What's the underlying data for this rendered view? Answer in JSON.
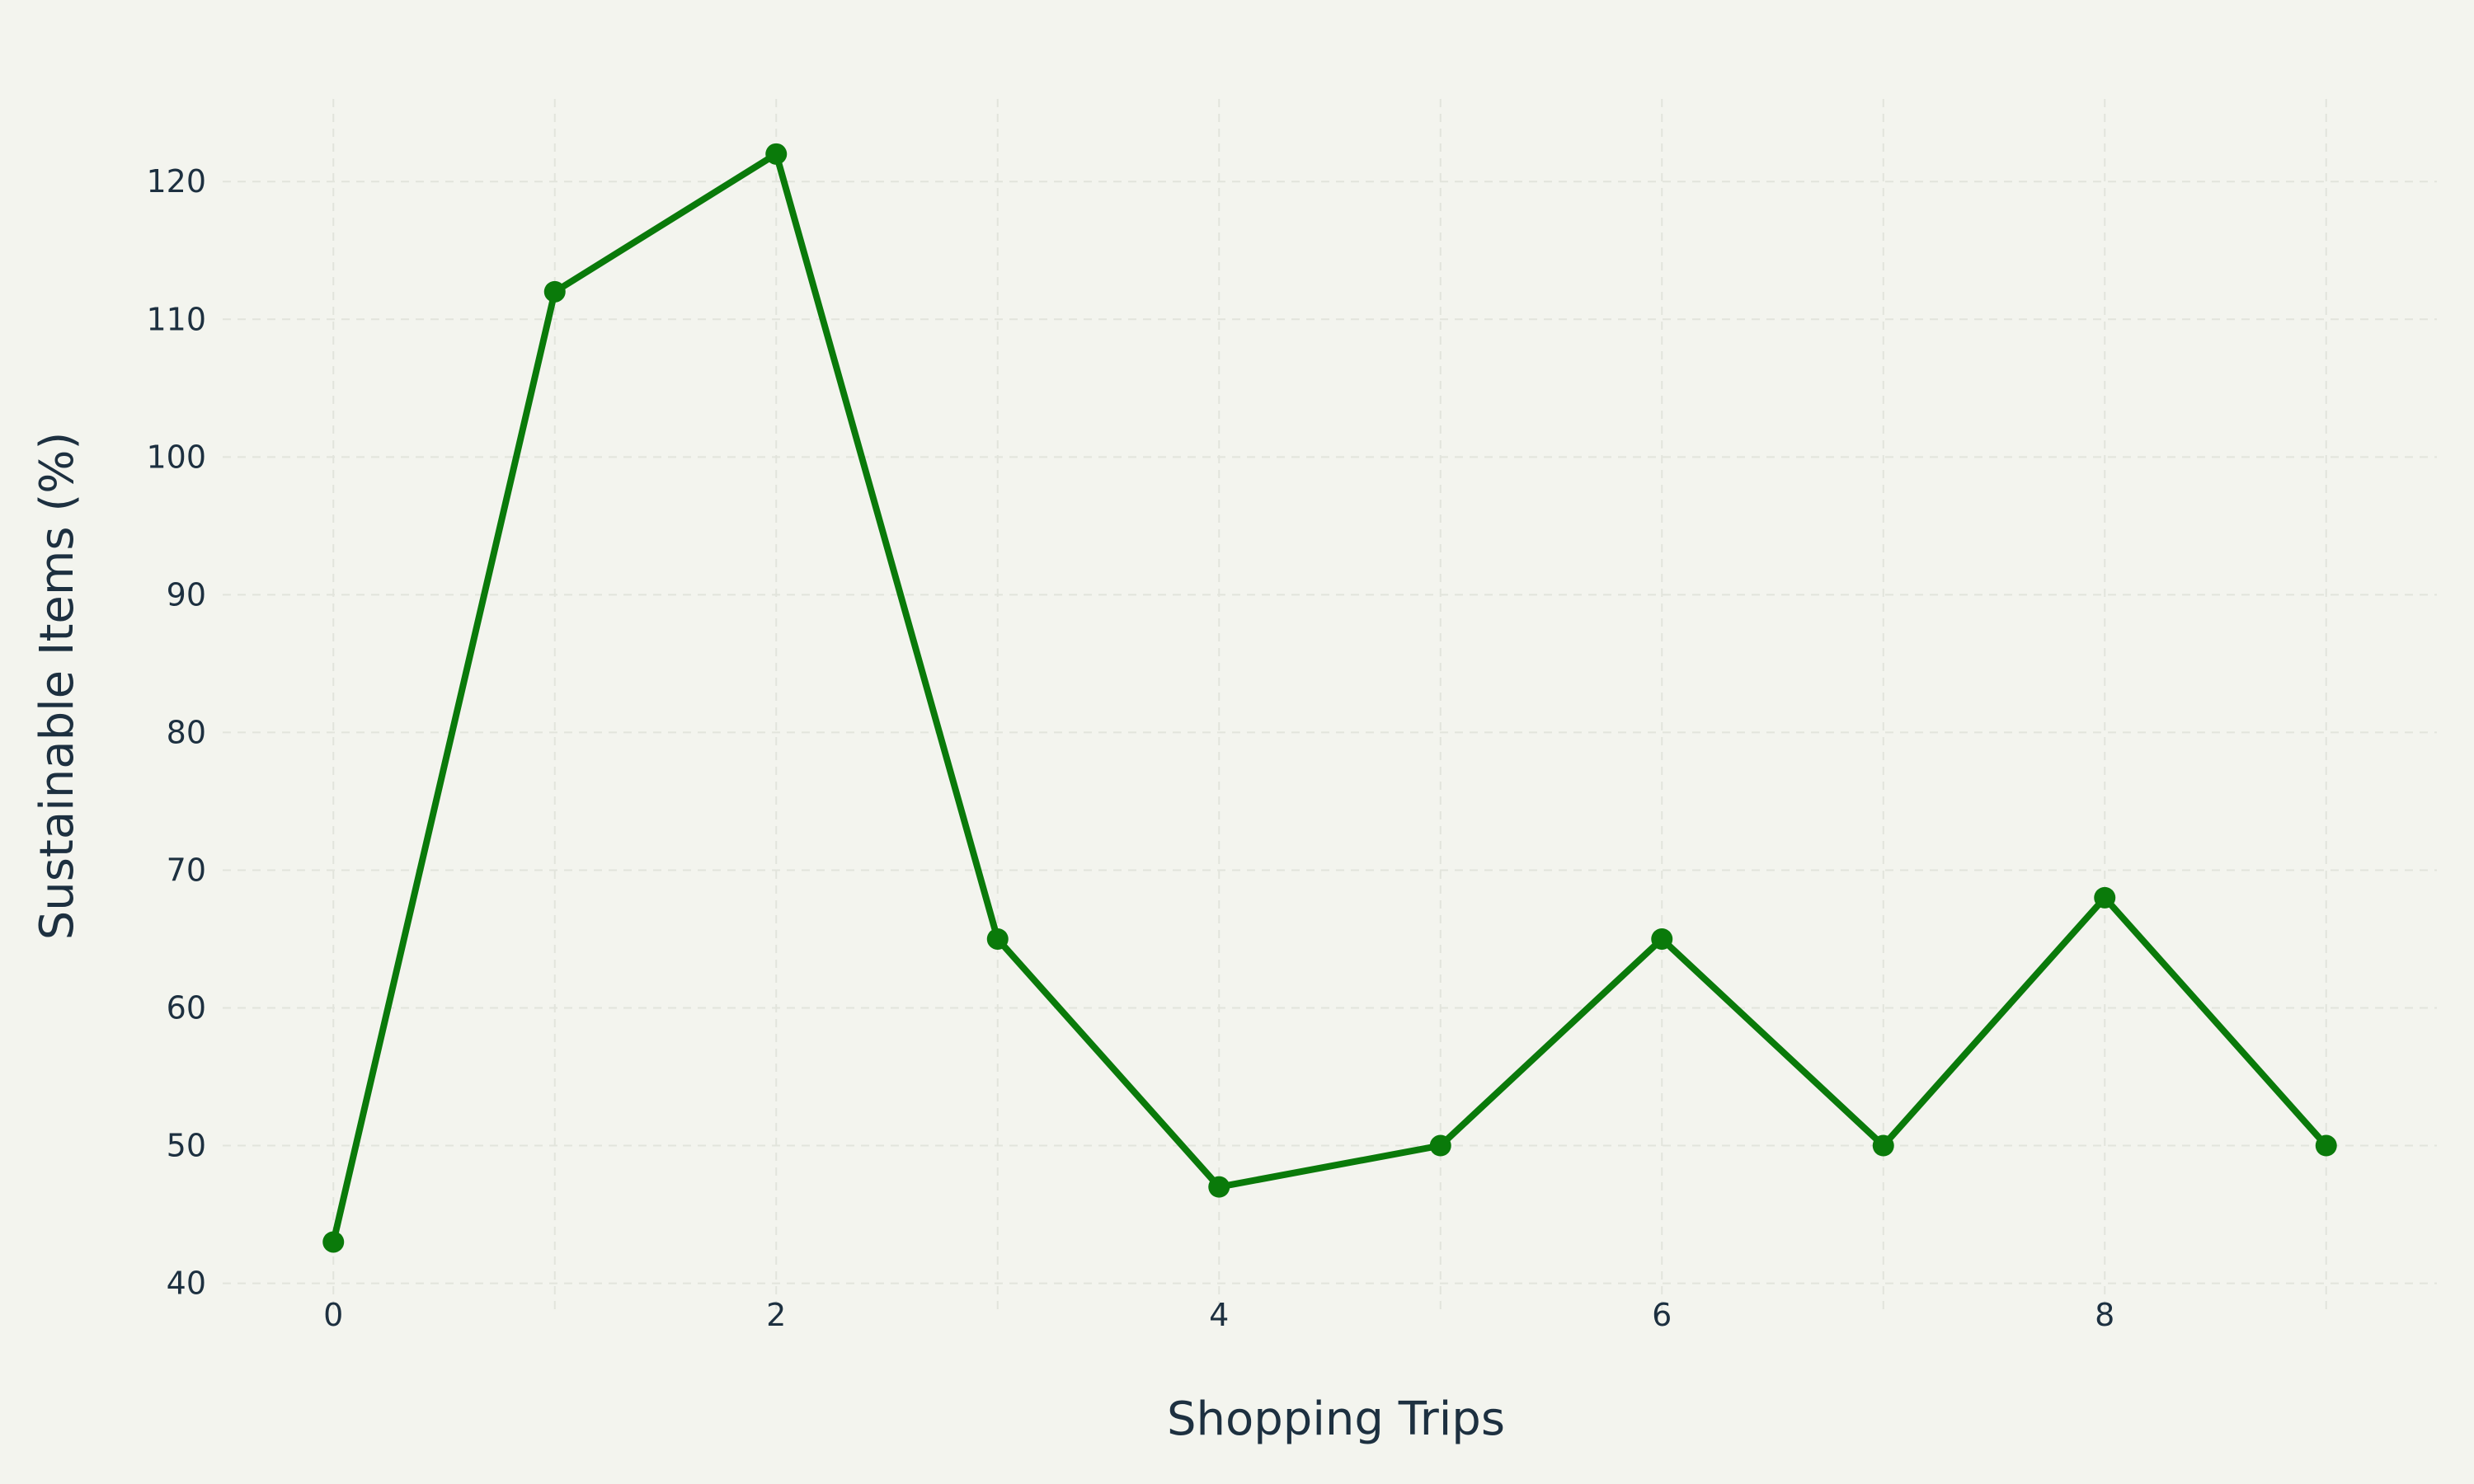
{
  "chart_data": {
    "type": "line",
    "title": "",
    "xlabel": "Shopping Trips",
    "ylabel": "Sustainable Items (%)",
    "xlim": [
      -0.5,
      9.5
    ],
    "ylim": [
      38,
      126
    ],
    "xticks": [
      0,
      2,
      4,
      6,
      8
    ],
    "yticks": [
      40,
      50,
      60,
      70,
      80,
      90,
      100,
      110,
      120
    ],
    "grid": true,
    "legend": "none",
    "series": [
      {
        "color": "#0a7a0a",
        "x": [
          0,
          1,
          2,
          3,
          4,
          5,
          6,
          7,
          8,
          9
        ],
        "y": [
          43,
          112,
          122,
          65,
          47,
          50,
          65,
          50,
          68,
          50
        ]
      }
    ]
  }
}
